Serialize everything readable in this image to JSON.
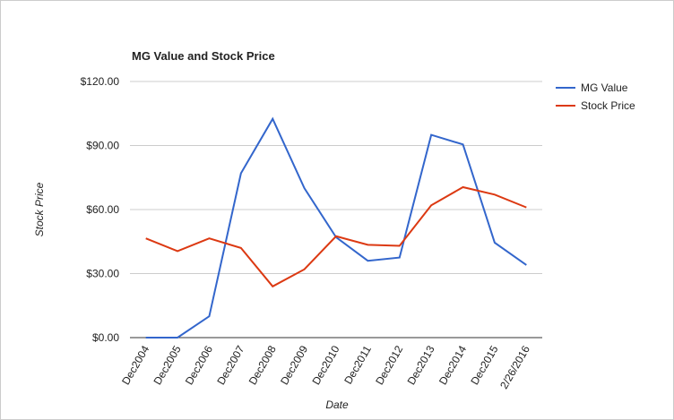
{
  "chart_data": {
    "type": "line",
    "title": "MG Value and Stock Price",
    "x_label": "Date",
    "y_label": "Stock Price",
    "categories": [
      "Dec2004",
      "Dec2005",
      "Dec2006",
      "Dec2007",
      "Dec2008",
      "Dec2009",
      "Dec2010",
      "Dec2011",
      "Dec2012",
      "Dec2013",
      "Dec2014",
      "Dec2015",
      "2/26/2016"
    ],
    "series": [
      {
        "name": "MG Value",
        "color": "#3366cc",
        "values": [
          0,
          0,
          10,
          77,
          102.5,
          70,
          47,
          36,
          37.5,
          95,
          90.5,
          44.5,
          34
        ]
      },
      {
        "name": "Stock Price",
        "color": "#dc3912",
        "values": [
          46.5,
          40.5,
          46.5,
          42,
          24,
          32,
          47.5,
          43.5,
          43,
          62,
          70.5,
          67,
          61
        ]
      }
    ],
    "ylim": [
      0,
      120
    ],
    "yticks": [
      {
        "value": 0,
        "label": "$0.00"
      },
      {
        "value": 30,
        "label": "$30.00"
      },
      {
        "value": 60,
        "label": "$60.00"
      },
      {
        "value": 90,
        "label": "$90.00"
      },
      {
        "value": 120,
        "label": "$120.00"
      }
    ],
    "grid": true,
    "legend": "right"
  }
}
